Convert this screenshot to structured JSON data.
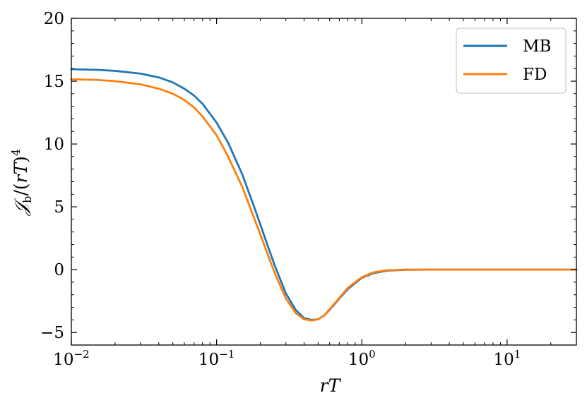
{
  "chart_data": {
    "type": "line",
    "xscale": "log",
    "xlim": [
      0.01,
      30
    ],
    "ylim": [
      -6,
      20
    ],
    "xlabel": "rT",
    "ylabel": "𝒥_b/(rT)^4",
    "x_ticks": [
      {
        "value": 0.01,
        "base": "10",
        "exp": "−2"
      },
      {
        "value": 0.1,
        "base": "10",
        "exp": "−1"
      },
      {
        "value": 1,
        "base": "10",
        "exp": "0"
      },
      {
        "value": 10,
        "base": "10",
        "exp": "1"
      }
    ],
    "y_ticks": [
      {
        "value": 20,
        "label": "20"
      },
      {
        "value": 15,
        "label": "15"
      },
      {
        "value": 10,
        "label": "10"
      },
      {
        "value": 5,
        "label": "5"
      },
      {
        "value": 0,
        "label": "0"
      },
      {
        "value": -5,
        "label": "−5"
      }
    ],
    "legend_position": "top-right",
    "grid": false,
    "series": [
      {
        "name": "MB",
        "color": "#1f77b4",
        "x": [
          0.01,
          0.015,
          0.02,
          0.03,
          0.04,
          0.05,
          0.06,
          0.07,
          0.08,
          0.1,
          0.12,
          0.15,
          0.18,
          0.2,
          0.22,
          0.25,
          0.3,
          0.35,
          0.4,
          0.45,
          0.5,
          0.55,
          0.6,
          0.7,
          0.8,
          1.0,
          1.2,
          1.5,
          2.0,
          3.0,
          5.0,
          10.0,
          30.0
        ],
        "y": [
          15.95,
          15.9,
          15.82,
          15.6,
          15.3,
          14.9,
          14.4,
          13.85,
          13.2,
          11.7,
          10.1,
          7.6,
          5.1,
          3.6,
          2.2,
          0.4,
          -1.9,
          -3.2,
          -3.85,
          -4.0,
          -3.95,
          -3.65,
          -3.2,
          -2.3,
          -1.55,
          -0.65,
          -0.28,
          -0.08,
          -0.01,
          0.0,
          0.0,
          0.0,
          0.0
        ]
      },
      {
        "name": "FD",
        "color": "#ff7f0e",
        "x": [
          0.01,
          0.015,
          0.02,
          0.03,
          0.04,
          0.05,
          0.06,
          0.07,
          0.08,
          0.1,
          0.12,
          0.15,
          0.18,
          0.2,
          0.22,
          0.25,
          0.3,
          0.35,
          0.4,
          0.45,
          0.5,
          0.55,
          0.6,
          0.7,
          0.8,
          1.0,
          1.2,
          1.5,
          2.0,
          3.0,
          5.0,
          10.0,
          30.0
        ],
        "y": [
          15.15,
          15.1,
          15.0,
          14.75,
          14.4,
          14.0,
          13.5,
          12.9,
          12.2,
          10.7,
          9.0,
          6.6,
          4.2,
          2.8,
          1.5,
          -0.2,
          -2.3,
          -3.45,
          -3.95,
          -4.05,
          -3.95,
          -3.65,
          -3.15,
          -2.25,
          -1.45,
          -0.6,
          -0.22,
          -0.05,
          0.0,
          0.0,
          0.0,
          0.0,
          0.0
        ]
      }
    ]
  }
}
